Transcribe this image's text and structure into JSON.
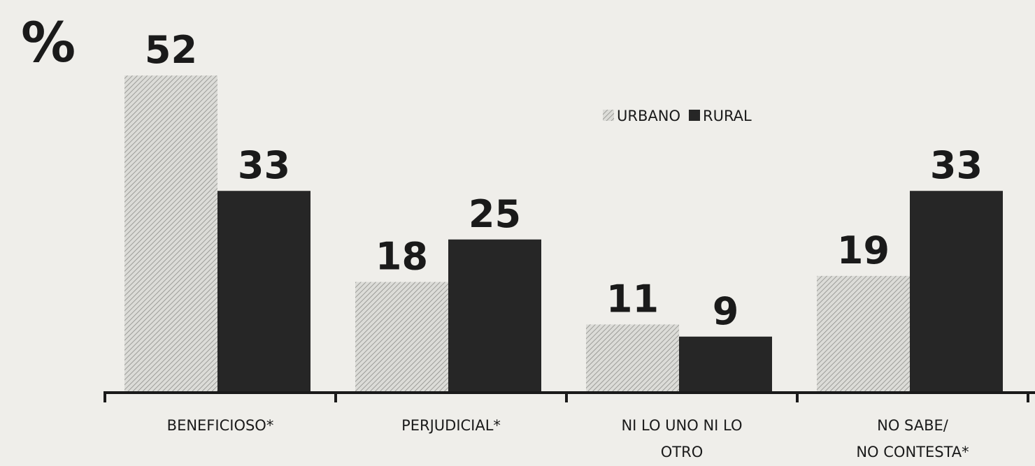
{
  "chart_data": {
    "type": "bar",
    "unit_label": "%",
    "categories": [
      "BENEFICIOSO*",
      "PERJUDICIAL*",
      "NI LO UNO NI LO\nOTRO",
      "NO SABE/\nNO CONTESTA*"
    ],
    "series": [
      {
        "name": "URBANO",
        "color": "#c9c9c6",
        "values": [
          52,
          18,
          11,
          19
        ]
      },
      {
        "name": "RURAL",
        "color": "#262626",
        "values": [
          33,
          25,
          9,
          33
        ]
      }
    ],
    "ylim": [
      0,
      60
    ],
    "legend": "upper right"
  }
}
